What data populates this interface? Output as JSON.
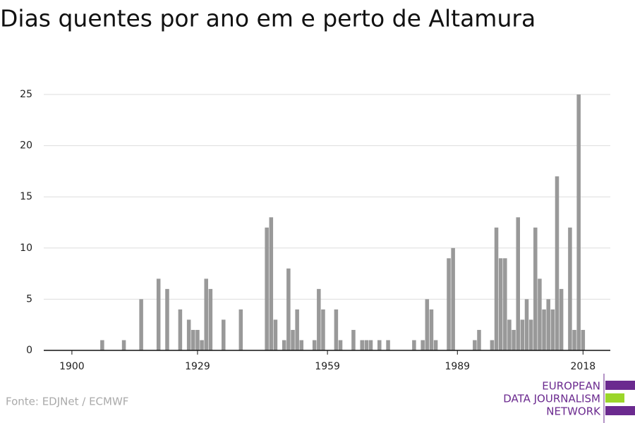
{
  "chart_data": {
    "type": "bar",
    "title": "Dias quentes por ano em e perto de Altamura",
    "source": "Fonte: EDJNet / ECMWF",
    "logo": [
      "EUROPEAN",
      "DATA JOURNALISM",
      "NETWORK"
    ],
    "color": "#999999",
    "x": [
      1907,
      1912,
      1916,
      1920,
      1922,
      1925,
      1927,
      1928,
      1929,
      1930,
      1931,
      1932,
      1935,
      1939,
      1945,
      1946,
      1947,
      1949,
      1950,
      1951,
      1952,
      1953,
      1956,
      1957,
      1958,
      1961,
      1962,
      1965,
      1967,
      1968,
      1969,
      1971,
      1973,
      1979,
      1981,
      1982,
      1983,
      1984,
      1987,
      1988,
      1993,
      1994,
      1997,
      1998,
      1999,
      2000,
      2001,
      2002,
      2003,
      2004,
      2005,
      2006,
      2007,
      2008,
      2009,
      2010,
      2011,
      2012,
      2013,
      2015,
      2016,
      2017,
      2018
    ],
    "values": [
      1,
      1,
      5,
      7,
      6,
      4,
      3,
      2,
      2,
      1,
      7,
      6,
      3,
      4,
      12,
      13,
      3,
      1,
      8,
      2,
      4,
      1,
      1,
      6,
      4,
      4,
      1,
      2,
      1,
      1,
      1,
      1,
      1,
      1,
      1,
      5,
      4,
      1,
      9,
      10,
      1,
      2,
      1,
      12,
      9,
      9,
      3,
      2,
      13,
      3,
      5,
      3,
      12,
      7,
      4,
      5,
      4,
      17,
      6,
      12,
      2,
      25,
      2
    ],
    "xlim": [
      1893.5,
      2024.3
    ],
    "xticks": [
      1900,
      1929,
      1959,
      1989,
      2018
    ],
    "ylim": [
      0,
      25
    ],
    "yticks": [
      0,
      5,
      10,
      15,
      20,
      25
    ],
    "grid": true
  }
}
